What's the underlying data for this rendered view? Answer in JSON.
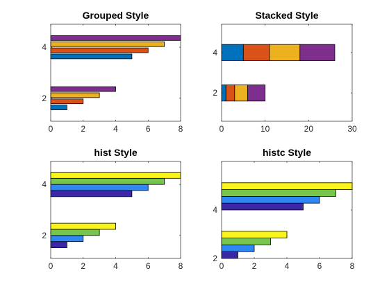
{
  "chart_data": [
    {
      "type": "bar",
      "orientation": "horizontal",
      "mode": "grouped",
      "title": "Grouped Style",
      "categories": [
        2,
        4
      ],
      "series": [
        {
          "values": [
            1,
            5
          ],
          "color": "#0072BD"
        },
        {
          "values": [
            2,
            6
          ],
          "color": "#D95319"
        },
        {
          "values": [
            3,
            7
          ],
          "color": "#EDB120"
        },
        {
          "values": [
            4,
            8
          ],
          "color": "#7E2F8E"
        }
      ],
      "xlim": [
        0,
        8
      ],
      "xticks": [
        "0",
        "2",
        "4",
        "6",
        "8"
      ],
      "yticks": [
        "2",
        "4"
      ],
      "ylim": [
        1.1,
        4.9
      ],
      "grid": false
    },
    {
      "type": "bar",
      "orientation": "horizontal",
      "mode": "stacked",
      "title": "Stacked Style",
      "categories": [
        2,
        4
      ],
      "series": [
        {
          "values": [
            1,
            5
          ],
          "color": "#0072BD"
        },
        {
          "values": [
            2,
            6
          ],
          "color": "#D95319"
        },
        {
          "values": [
            3,
            7
          ],
          "color": "#EDB120"
        },
        {
          "values": [
            4,
            8
          ],
          "color": "#7E2F8E"
        }
      ],
      "xlim": [
        0,
        30
      ],
      "xticks": [
        "0",
        "10",
        "20",
        "30"
      ],
      "yticks": [
        "2",
        "4"
      ],
      "ylim": [
        0.6,
        5.4
      ],
      "grid": false
    },
    {
      "type": "bar",
      "orientation": "horizontal",
      "mode": "hist",
      "title": "hist Style",
      "categories": [
        2,
        4
      ],
      "series": [
        {
          "values": [
            1,
            5
          ],
          "color": "#3E26A8"
        },
        {
          "values": [
            2,
            6
          ],
          "color": "#2E87F5"
        },
        {
          "values": [
            3,
            7
          ],
          "color": "#77C44F"
        },
        {
          "values": [
            4,
            8
          ],
          "color": "#F9F41B"
        }
      ],
      "xlim": [
        0,
        8
      ],
      "xticks": [
        "0",
        "2",
        "4",
        "6",
        "8"
      ],
      "yticks": [
        "2",
        "4"
      ],
      "ylim": [
        1.1,
        4.9
      ],
      "grid": false
    },
    {
      "type": "bar",
      "orientation": "horizontal",
      "mode": "histc",
      "title": "histc Style",
      "categories": [
        2,
        4
      ],
      "series": [
        {
          "values": [
            1,
            5
          ],
          "color": "#3E26A8"
        },
        {
          "values": [
            2,
            6
          ],
          "color": "#2E87F5"
        },
        {
          "values": [
            3,
            7
          ],
          "color": "#77C44F"
        },
        {
          "values": [
            4,
            8
          ],
          "color": "#F9F41B"
        }
      ],
      "xlim": [
        0,
        8
      ],
      "xticks": [
        "0",
        "2",
        "4",
        "6",
        "8"
      ],
      "yticks": [
        "2",
        "4"
      ],
      "ylim": [
        2,
        6
      ],
      "grid": false
    }
  ]
}
